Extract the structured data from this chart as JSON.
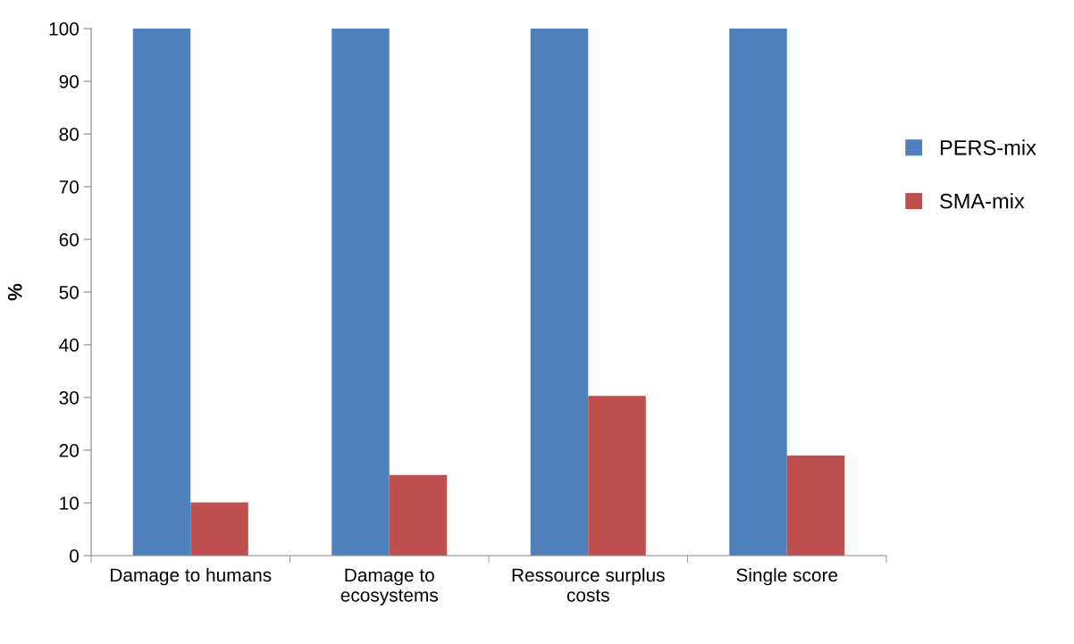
{
  "chart_data": {
    "type": "bar",
    "ylabel": "%",
    "categories": [
      "Damage to humans",
      "Damage to\necosystems",
      "Ressource surplus\ncosts",
      "Single score"
    ],
    "series": [
      {
        "name": "PERS-mix",
        "color": "#4f81bd",
        "values": [
          100,
          100,
          100,
          100
        ]
      },
      {
        "name": "SMA-mix",
        "color": "#c0504d",
        "values": [
          10.1,
          15.3,
          30.3,
          19.0
        ]
      }
    ],
    "ylim": [
      0,
      100
    ],
    "yticks": [
      0,
      10,
      20,
      30,
      40,
      50,
      60,
      70,
      80,
      90,
      100
    ],
    "grid": false,
    "legend": "right"
  }
}
